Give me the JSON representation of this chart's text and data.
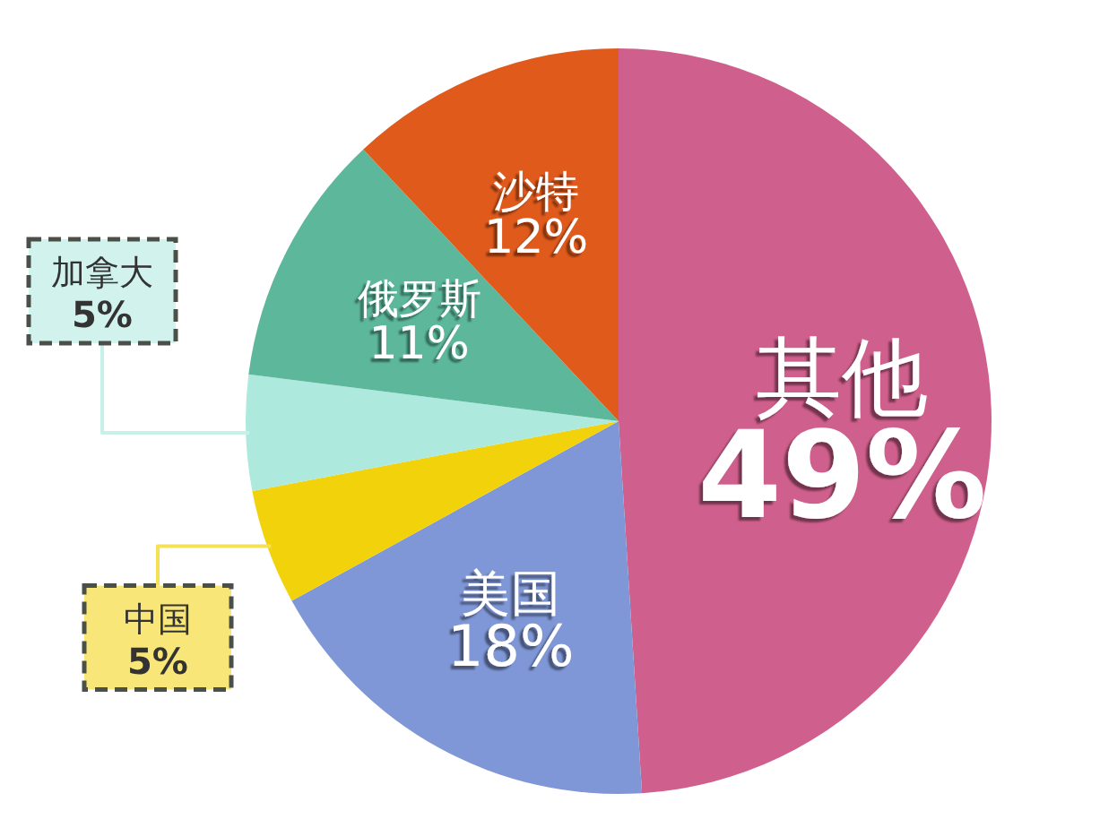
{
  "chart_data": {
    "type": "pie",
    "categories": [
      "其他",
      "美国",
      "中国",
      "加拿大",
      "俄罗斯",
      "沙特"
    ],
    "values": [
      49,
      18,
      5,
      5,
      11,
      12
    ],
    "value_labels": [
      "49%",
      "18%",
      "5%",
      "5%",
      "11%",
      "12%"
    ],
    "colors": [
      "#cf5f8c",
      "#7f97d6",
      "#f2d20a",
      "#aee9de",
      "#5db89b",
      "#e05a1c"
    ]
  }
}
